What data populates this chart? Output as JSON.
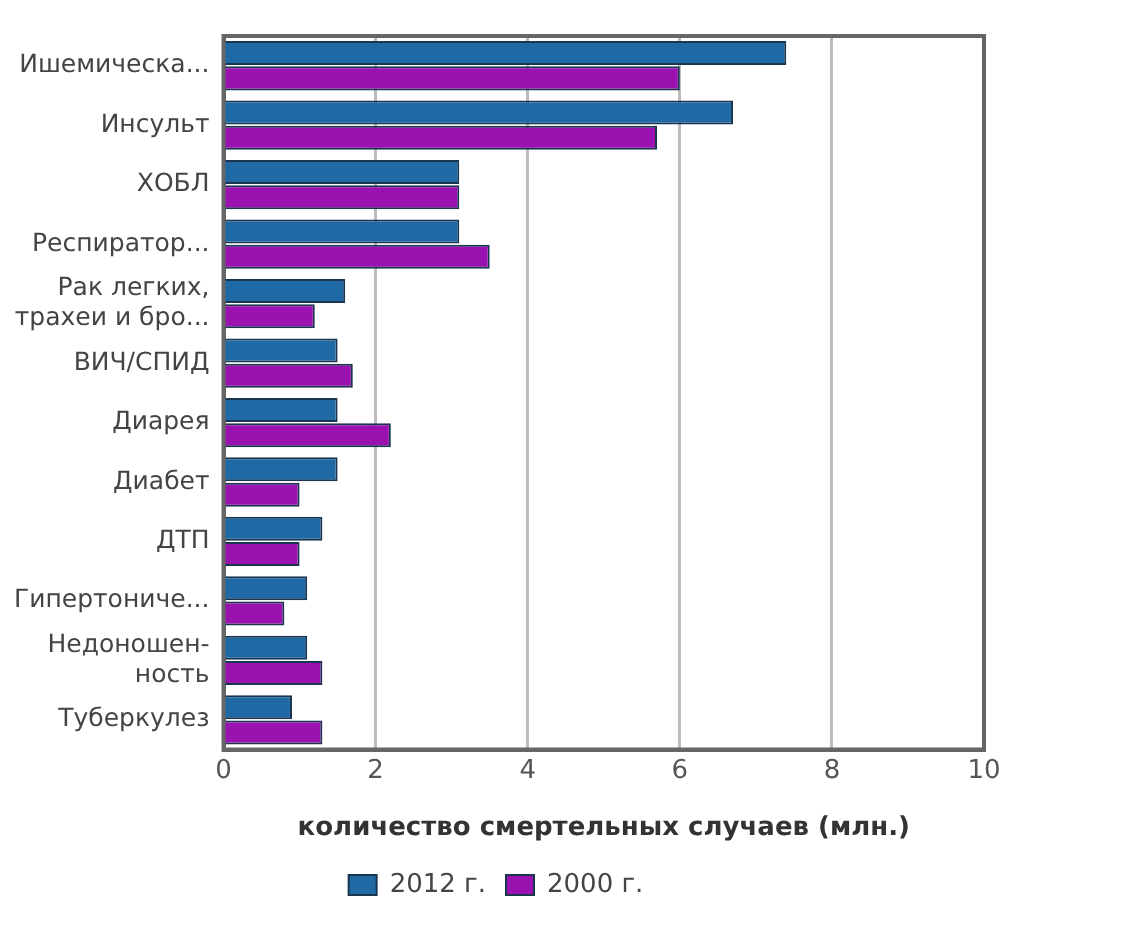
{
  "chart_data": {
    "type": "bar",
    "orientation": "horizontal",
    "xlabel": "количество смертельных случаев (млн.)",
    "categories": [
      "Ишемическа...",
      "Инсульт",
      "ХОБЛ",
      "Респиратор...",
      "Рак легких,\nтрахеи и бро...",
      "ВИЧ/СПИД",
      "Диарея",
      "Диабет",
      "ДТП",
      "Гипертониче...",
      "Недоношен-\nность",
      "Туберкулез"
    ],
    "series": [
      {
        "name": "2012 г.",
        "color": "#1f6aa5",
        "values": [
          7.4,
          6.7,
          3.1,
          3.1,
          1.6,
          1.5,
          1.5,
          1.5,
          1.3,
          1.1,
          1.1,
          0.9
        ]
      },
      {
        "name": "2000 г.",
        "color": "#9b12b0",
        "values": [
          6.0,
          5.7,
          3.1,
          3.5,
          1.2,
          1.7,
          2.2,
          1.0,
          1.0,
          0.8,
          1.3,
          1.3
        ]
      }
    ],
    "xlim": [
      0,
      10
    ],
    "xticks": [
      0,
      2,
      4,
      6,
      8,
      10
    ],
    "grid": "x",
    "legend": "bottom"
  }
}
